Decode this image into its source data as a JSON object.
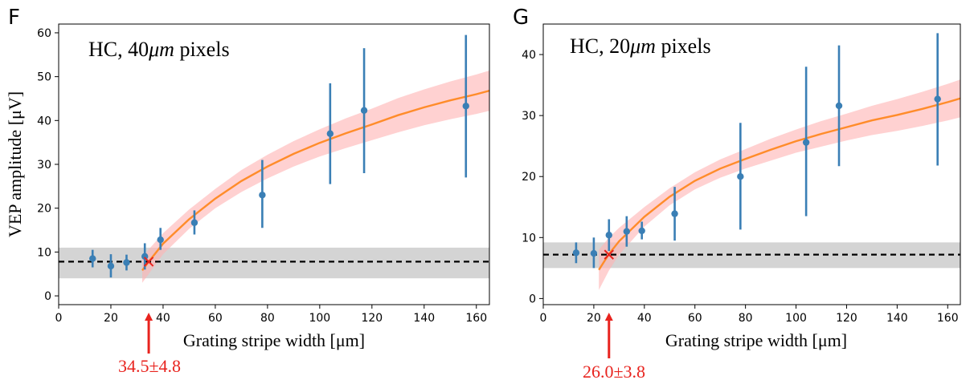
{
  "chart_data": [
    {
      "panel_label": "F",
      "type": "scatter",
      "title_prefix": "HC, 40",
      "title_unit": "μm",
      "title_suffix": " pixels",
      "xlabel": "Grating stripe width [μm]",
      "ylabel": "VEP amplitude [μV]",
      "xlim": [
        0,
        165
      ],
      "ylim": [
        -2,
        62
      ],
      "xticks": [
        0,
        20,
        40,
        60,
        80,
        100,
        120,
        140,
        160
      ],
      "yticks": [
        0,
        10,
        20,
        30,
        40,
        50,
        60
      ],
      "points": [
        {
          "x": 13,
          "y": 8.5,
          "err_low": 6.5,
          "err_high": 10.5
        },
        {
          "x": 20,
          "y": 6.8,
          "err_low": 4.2,
          "err_high": 9.5
        },
        {
          "x": 26,
          "y": 7.6,
          "err_low": 5.8,
          "err_high": 9.4
        },
        {
          "x": 33,
          "y": 9.0,
          "err_low": 6.0,
          "err_high": 12.0
        },
        {
          "x": 39,
          "y": 12.8,
          "err_low": 10.5,
          "err_high": 15.5
        },
        {
          "x": 52,
          "y": 16.7,
          "err_low": 14.0,
          "err_high": 19.5
        },
        {
          "x": 78,
          "y": 23.0,
          "err_low": 15.5,
          "err_high": 31.0
        },
        {
          "x": 104,
          "y": 37.0,
          "err_low": 25.5,
          "err_high": 48.5
        },
        {
          "x": 117,
          "y": 42.3,
          "err_low": 28.0,
          "err_high": 56.5
        },
        {
          "x": 156,
          "y": 43.3,
          "err_low": 27.0,
          "err_high": 59.5
        }
      ],
      "fit_curve": {
        "x": [
          32,
          34.5,
          40,
          50,
          60,
          70,
          80,
          90,
          100,
          110,
          120,
          130,
          140,
          150,
          160,
          165
        ],
        "y": [
          5.8,
          7.8,
          11.9,
          17.5,
          22.2,
          26.2,
          29.5,
          32.4,
          34.9,
          37.1,
          39.1,
          41.2,
          43.0,
          44.6,
          46.0,
          46.8
        ]
      },
      "fit_band": {
        "x": [
          32,
          34.5,
          40,
          50,
          60,
          70,
          80,
          90,
          100,
          110,
          120,
          130,
          140,
          150,
          160,
          165
        ],
        "lower": [
          3.0,
          5.0,
          9.5,
          15.3,
          20.0,
          23.7,
          26.8,
          29.5,
          31.8,
          33.7,
          35.5,
          37.3,
          38.9,
          40.3,
          41.5,
          42.2
        ],
        "upper": [
          8.6,
          10.6,
          14.3,
          19.7,
          24.4,
          28.7,
          32.2,
          35.3,
          38.0,
          40.5,
          42.7,
          45.1,
          47.1,
          48.9,
          50.5,
          51.4
        ]
      },
      "baseline": {
        "y": 7.8,
        "band_low": 4.0,
        "band_high": 11.0
      },
      "threshold": {
        "x": 34.5,
        "y": 7.8,
        "label": "34.5±4.8"
      }
    },
    {
      "panel_label": "G",
      "type": "scatter",
      "title_prefix": "HC, 20",
      "title_unit": "μm",
      "title_suffix": " pixels",
      "xlabel": "Grating stripe width [μm]",
      "ylabel": "",
      "xlim": [
        0,
        165
      ],
      "ylim": [
        -1,
        45
      ],
      "xticks": [
        0,
        20,
        40,
        60,
        80,
        100,
        120,
        140,
        160
      ],
      "yticks": [
        0,
        10,
        20,
        30,
        40
      ],
      "points": [
        {
          "x": 13,
          "y": 7.5,
          "err_low": 5.8,
          "err_high": 9.2
        },
        {
          "x": 20,
          "y": 7.4,
          "err_low": 5.0,
          "err_high": 10.0
        },
        {
          "x": 26,
          "y": 10.4,
          "err_low": 7.8,
          "err_high": 13.0
        },
        {
          "x": 33,
          "y": 11.0,
          "err_low": 8.5,
          "err_high": 13.5
        },
        {
          "x": 39,
          "y": 11.1,
          "err_low": 9.7,
          "err_high": 12.6
        },
        {
          "x": 52,
          "y": 13.9,
          "err_low": 9.5,
          "err_high": 18.3
        },
        {
          "x": 78,
          "y": 20.0,
          "err_low": 11.3,
          "err_high": 28.8
        },
        {
          "x": 104,
          "y": 25.6,
          "err_low": 13.5,
          "err_high": 38.0
        },
        {
          "x": 117,
          "y": 31.6,
          "err_low": 21.7,
          "err_high": 41.5
        },
        {
          "x": 156,
          "y": 32.7,
          "err_low": 21.8,
          "err_high": 43.5
        }
      ],
      "fit_curve": {
        "x": [
          22,
          26,
          30,
          40,
          50,
          60,
          70,
          80,
          90,
          100,
          110,
          120,
          130,
          140,
          150,
          160,
          165
        ],
        "y": [
          4.7,
          7.3,
          9.4,
          13.4,
          16.7,
          19.3,
          21.3,
          22.9,
          24.4,
          25.8,
          27.0,
          28.1,
          29.2,
          30.1,
          31.1,
          32.2,
          32.8
        ]
      },
      "fit_band": {
        "x": [
          22,
          26,
          30,
          40,
          50,
          60,
          70,
          80,
          90,
          100,
          110,
          120,
          130,
          140,
          150,
          160,
          165
        ],
        "lower": [
          1.4,
          4.6,
          7.2,
          11.8,
          15.3,
          17.9,
          19.8,
          21.3,
          22.6,
          23.9,
          24.9,
          25.9,
          26.8,
          27.5,
          28.3,
          29.2,
          29.7
        ],
        "upper": [
          8.0,
          10.0,
          11.6,
          15.0,
          18.1,
          20.7,
          22.8,
          24.5,
          26.2,
          27.7,
          29.1,
          30.3,
          31.6,
          32.7,
          33.9,
          35.2,
          35.9
        ]
      },
      "baseline": {
        "y": 7.2,
        "band_low": 5.0,
        "band_high": 9.2
      },
      "threshold": {
        "x": 26.0,
        "y": 7.2,
        "label": "26.0±3.8"
      }
    }
  ],
  "colors": {
    "points": "#3a7fb5",
    "fit": "#ff8c2a",
    "fit_band": "#ffb3b3",
    "baseline_band": "#a9a9a9",
    "threshold": "#e8231e"
  }
}
